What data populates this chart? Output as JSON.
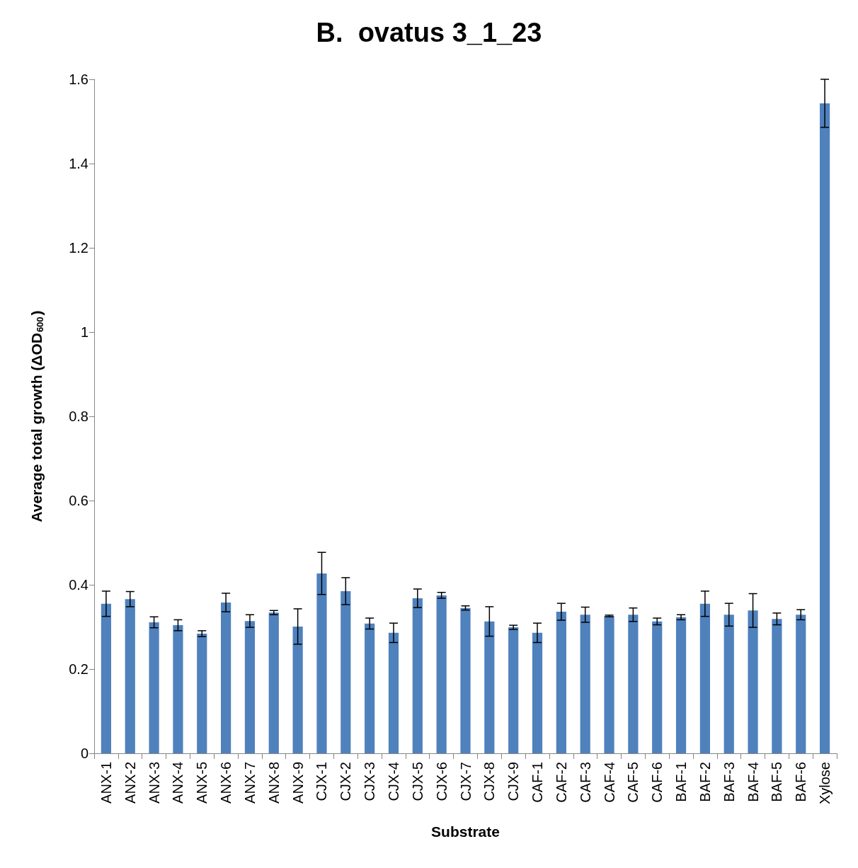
{
  "chart_data": {
    "type": "bar",
    "title": "B.  ovatus 3_1_23",
    "xlabel": "Substrate",
    "ylabel": "Average total growth (ΔOD$_{600}$)",
    "categories": [
      "ANX-1",
      "ANX-2",
      "ANX-3",
      "ANX-4",
      "ANX-5",
      "ANX-6",
      "ANX-7",
      "ANX-8",
      "ANX-9",
      "CJX-1",
      "CJX-2",
      "CJX-3",
      "CJX-4",
      "CJX-5",
      "CJX-6",
      "CJX-7",
      "CJX-8",
      "CJX-9",
      "CAF-1",
      "CAF-2",
      "CAF-3",
      "CAF-4",
      "CAF-5",
      "CAF-6",
      "BAF-1",
      "BAF-2",
      "BAF-3",
      "BAF-4",
      "BAF-5",
      "BAF-6",
      "Xylose"
    ],
    "values": [
      0.355,
      0.366,
      0.311,
      0.304,
      0.284,
      0.358,
      0.314,
      0.334,
      0.301,
      0.427,
      0.385,
      0.308,
      0.286,
      0.368,
      0.375,
      0.345,
      0.313,
      0.299,
      0.286,
      0.336,
      0.329,
      0.326,
      0.329,
      0.313,
      0.323,
      0.355,
      0.329,
      0.339,
      0.319,
      0.329,
      1.543
    ],
    "errors": [
      0.03,
      0.018,
      0.013,
      0.013,
      0.007,
      0.022,
      0.015,
      0.005,
      0.042,
      0.05,
      0.032,
      0.013,
      0.023,
      0.022,
      0.007,
      0.005,
      0.035,
      0.005,
      0.023,
      0.02,
      0.018,
      0.002,
      0.016,
      0.008,
      0.006,
      0.03,
      0.027,
      0.04,
      0.014,
      0.012,
      0.057
    ],
    "color": "#4f81bd",
    "ylim": [
      0,
      1.6
    ],
    "yticks": [
      0,
      0.2,
      0.4,
      0.6,
      0.8,
      1,
      1.2,
      1.4,
      1.6
    ],
    "grid": false
  }
}
